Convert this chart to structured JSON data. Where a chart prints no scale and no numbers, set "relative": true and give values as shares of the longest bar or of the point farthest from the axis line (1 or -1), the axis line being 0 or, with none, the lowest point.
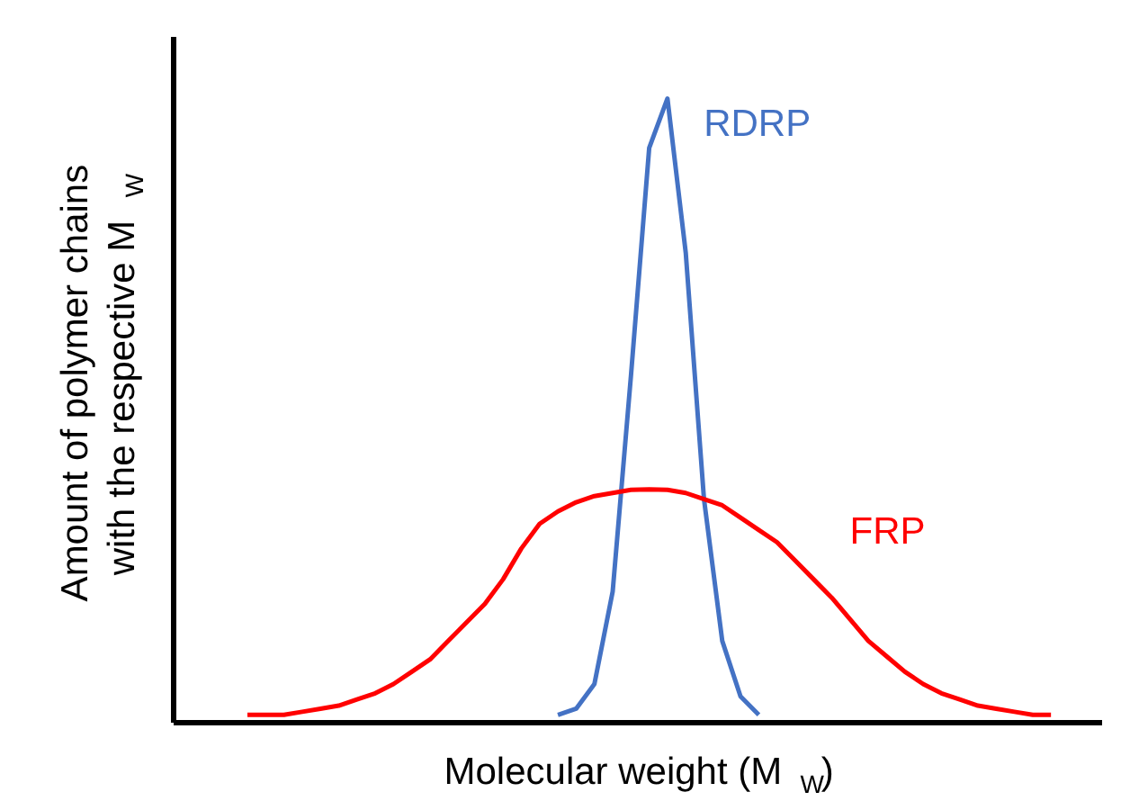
{
  "chart_data": {
    "type": "line",
    "relative": true,
    "xlabel": "Molecular weight (M$_{W}$)",
    "ylabel": "Amount of polymer chains\nwith the respective M$_{W}$",
    "categories": [
      null,
      null,
      null,
      null,
      null,
      null,
      null,
      null,
      null,
      null,
      null,
      null,
      null,
      null,
      null,
      null,
      null,
      null,
      null,
      null,
      null,
      null,
      null,
      null,
      null,
      null,
      null,
      null,
      null,
      null,
      null,
      null,
      null,
      null,
      null,
      null,
      null,
      null,
      null,
      null,
      null,
      null,
      null,
      null,
      null,
      null,
      null,
      null,
      null,
      null,
      null
    ],
    "series": [
      {
        "name": "RDRP",
        "color": "#4472c4",
        "values": [
          null,
          null,
          null,
          null,
          null,
          null,
          null,
          null,
          null,
          null,
          null,
          null,
          null,
          null,
          null,
          null,
          null,
          null,
          null,
          null,
          null,
          0,
          0.01,
          0.05,
          0.2,
          0.55,
          0.92,
          1,
          0.75,
          0.35,
          0.12,
          0.03,
          0,
          null,
          null,
          null,
          null,
          null,
          null,
          null,
          null,
          null,
          null,
          null,
          null,
          null,
          null,
          null,
          null,
          null,
          null
        ]
      },
      {
        "name": "FRP",
        "color": "#ff0000",
        "values": [
          null,
          null,
          null,
          null,
          0,
          0,
          0,
          0.005,
          0.01,
          0.015,
          0.025,
          0.035,
          0.05,
          0.07,
          0.09,
          0.12,
          0.15,
          0.18,
          0.22,
          0.27,
          0.31,
          0.33,
          0.345,
          0.355,
          0.36,
          0.365,
          0.366,
          0.365,
          0.36,
          0.35,
          0.34,
          0.32,
          0.3,
          0.28,
          0.25,
          0.22,
          0.19,
          0.155,
          0.12,
          0.095,
          0.07,
          0.05,
          0.035,
          0.025,
          0.015,
          0.01,
          0.005,
          0,
          0,
          null,
          null
        ]
      }
    ],
    "marker": "none",
    "line_style": "solid"
  }
}
